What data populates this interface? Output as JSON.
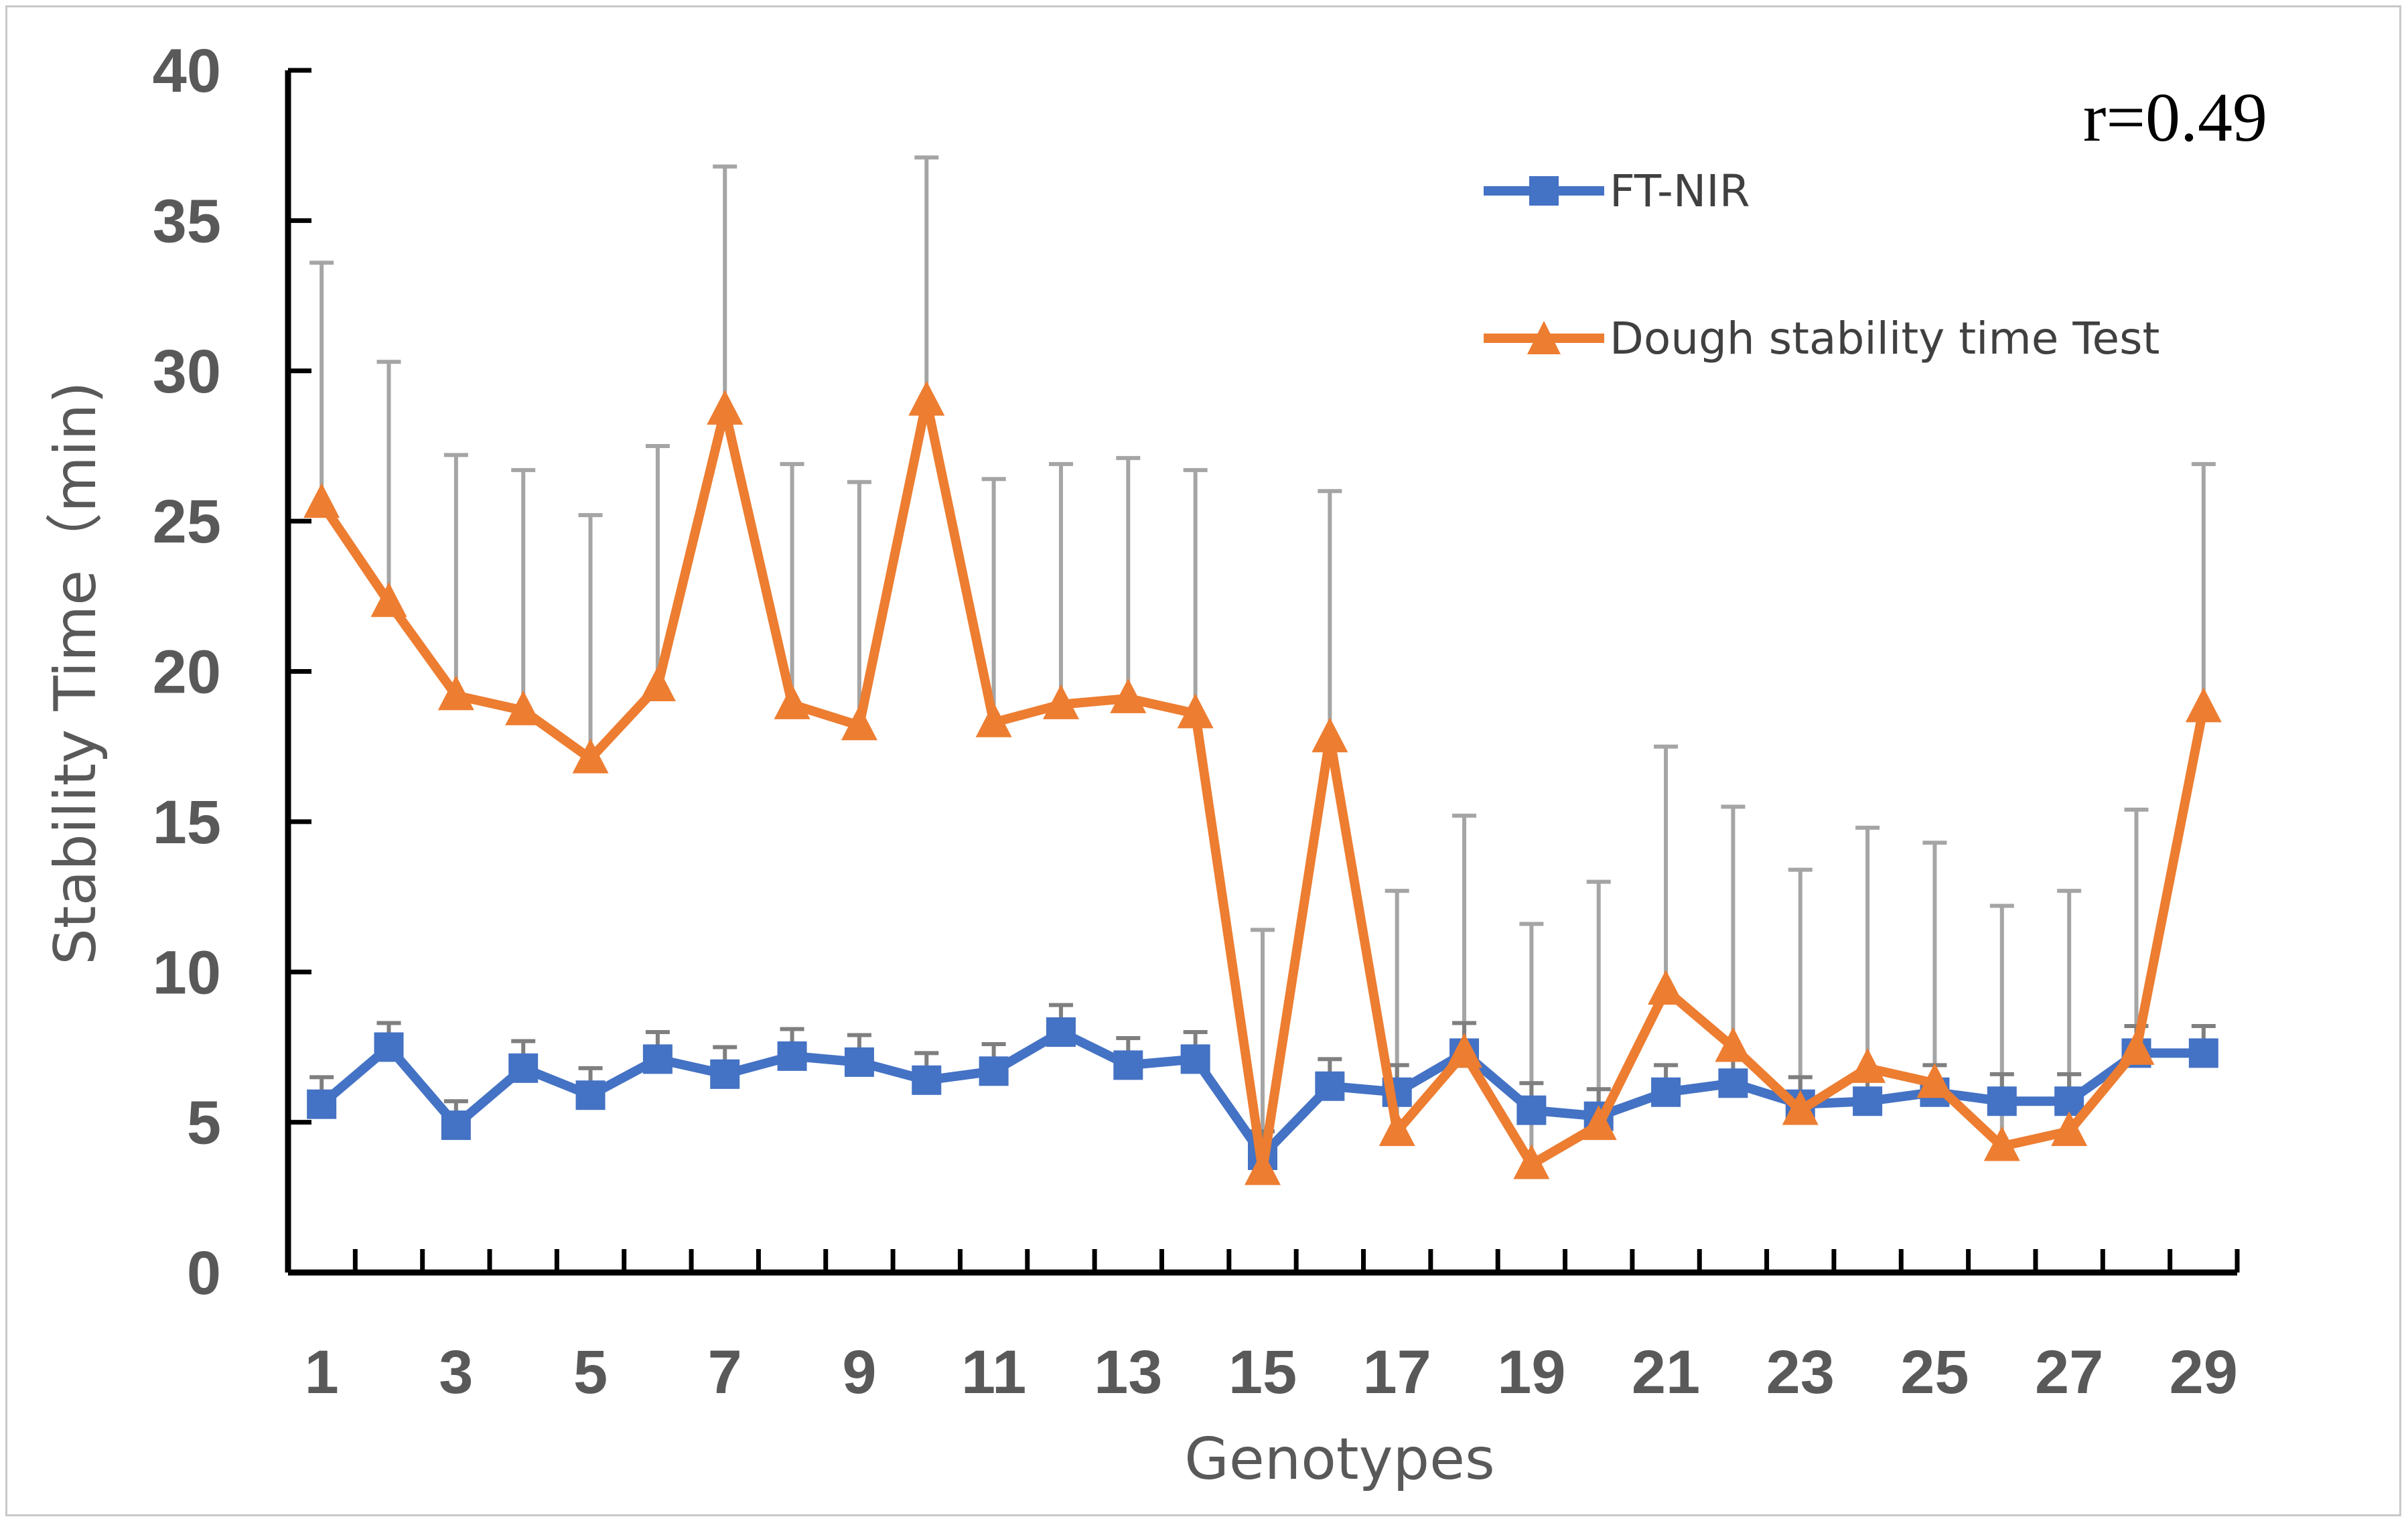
{
  "chart_data": {
    "type": "line",
    "title": "",
    "xlabel": "Genotypes",
    "ylabel": "Stability Time（min)",
    "annotation": "r=0.49",
    "ylim": [
      0,
      40
    ],
    "yticks": [
      "0",
      "5",
      "10",
      "15",
      "20",
      "25",
      "30",
      "35",
      "40"
    ],
    "x": [
      1,
      2,
      3,
      4,
      5,
      6,
      7,
      8,
      9,
      10,
      11,
      12,
      13,
      14,
      15,
      16,
      17,
      18,
      19,
      20,
      21,
      22,
      23,
      24,
      25,
      26,
      27,
      28,
      29
    ],
    "xtick_labels": [
      "1",
      "3",
      "5",
      "7",
      "9",
      "11",
      "13",
      "15",
      "17",
      "19",
      "21",
      "23",
      "25",
      "27",
      "29"
    ],
    "legend_position": "top-right",
    "series": [
      {
        "name": "FT-NIR",
        "color": "#4472C4",
        "marker": "square",
        "values": [
          5.6,
          7.5,
          4.9,
          6.8,
          5.9,
          7.1,
          6.6,
          7.2,
          7.0,
          6.4,
          6.7,
          8.0,
          6.9,
          7.1,
          3.9,
          6.2,
          6.0,
          7.3,
          5.4,
          5.2,
          6.0,
          6.3,
          5.6,
          5.7,
          6.0,
          5.7,
          5.7,
          7.3,
          7.3
        ],
        "error_upper": [
          6.5,
          8.3,
          5.7,
          7.7,
          6.8,
          8.0,
          7.5,
          8.1,
          7.9,
          7.3,
          7.6,
          8.9,
          7.8,
          8.0,
          4.7,
          7.1,
          6.9,
          8.3,
          6.3,
          6.1,
          6.9,
          7.2,
          6.5,
          6.6,
          6.9,
          6.6,
          6.6,
          8.2,
          8.2
        ]
      },
      {
        "name": "Dough stability time Test",
        "color": "#ED7D31",
        "marker": "triangle",
        "values": [
          25.6,
          22.3,
          19.2,
          18.7,
          17.1,
          19.5,
          28.7,
          18.9,
          18.2,
          29.0,
          18.3,
          18.9,
          19.1,
          18.6,
          3.4,
          17.8,
          4.7,
          7.3,
          3.6,
          4.9,
          9.4,
          7.5,
          5.4,
          6.8,
          6.3,
          4.2,
          4.7,
          7.4,
          18.8
        ],
        "error_upper": [
          33.6,
          30.3,
          27.2,
          26.7,
          25.2,
          27.5,
          36.8,
          26.9,
          26.3,
          37.1,
          26.4,
          26.9,
          27.1,
          26.7,
          11.4,
          26.0,
          12.7,
          15.2,
          11.6,
          13.0,
          17.5,
          15.5,
          13.4,
          14.8,
          14.3,
          12.2,
          12.7,
          15.4,
          26.9
        ]
      }
    ]
  },
  "colors": {
    "axis": "#000000",
    "tick_text": "#595959",
    "error_bar": "#a5a5a5",
    "error_bar_ftnir": "#7f7f7f"
  }
}
